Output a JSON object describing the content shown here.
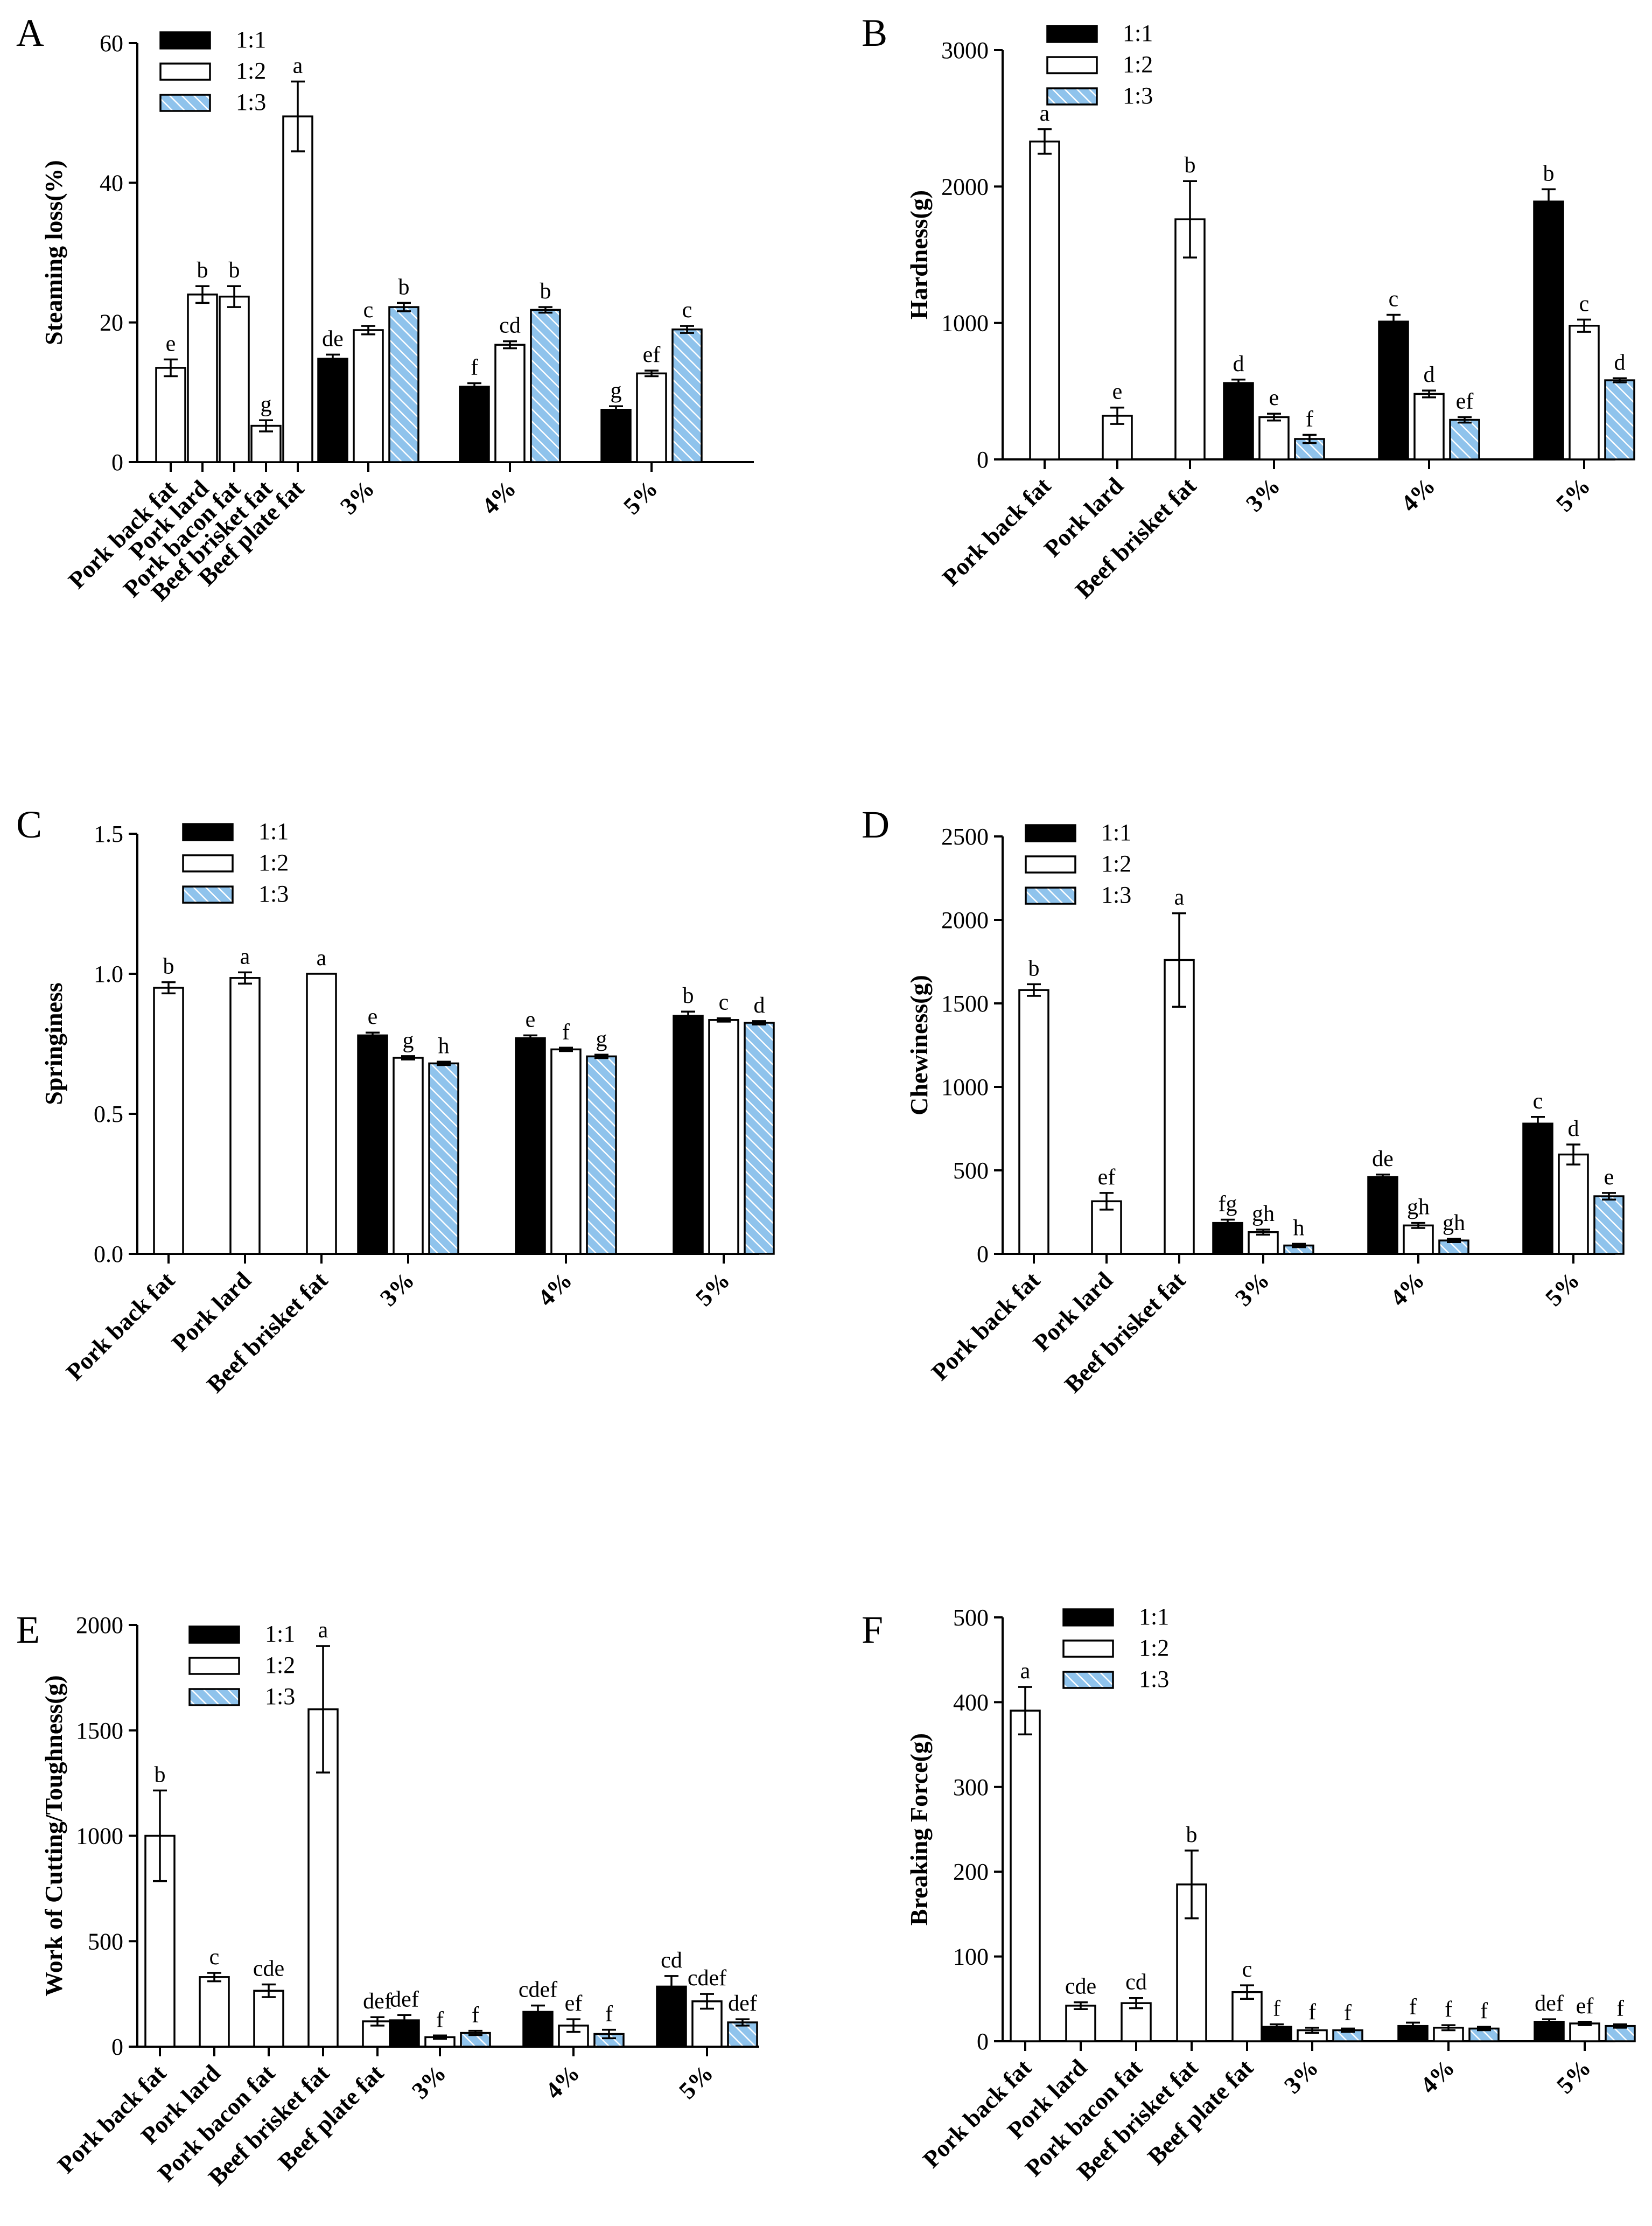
{
  "colors": {
    "ink": "#000000",
    "black_bar": "#000000",
    "white_bar": "#ffffff",
    "hatch_fill": "#8fc3ec",
    "hatch_line": "#ffffff"
  },
  "legend": [
    "1:1",
    "1:2",
    "1:3"
  ],
  "chart_data": [
    {
      "panel": "A",
      "type": "bar",
      "ylabel": "Steaming loss(%)",
      "ylim": [
        0,
        60
      ],
      "yticks": [
        0,
        20,
        40,
        60
      ],
      "singles": [
        {
          "label": "Pork back fat",
          "value": 13.5,
          "err": 1.2,
          "sig": "e"
        },
        {
          "label": "Pork lard",
          "value": 24,
          "err": 1.2,
          "sig": "b"
        },
        {
          "label": "Pork bacon fat",
          "value": 23.7,
          "err": 1.5,
          "sig": "b"
        },
        {
          "label": "Beef brisket fat",
          "value": 5.2,
          "err": 0.8,
          "sig": "g"
        },
        {
          "label": "Beef plate fat",
          "value": 49.5,
          "err": 5,
          "sig": "a"
        }
      ],
      "groups": [
        {
          "label": "3%",
          "bars": [
            {
              "value": 14.8,
              "err": 0.6,
              "sig": "de"
            },
            {
              "value": 18.9,
              "err": 0.6,
              "sig": "c"
            },
            {
              "value": 22.2,
              "err": 0.6,
              "sig": "b"
            }
          ]
        },
        {
          "label": "4%",
          "bars": [
            {
              "value": 10.8,
              "err": 0.5,
              "sig": "f"
            },
            {
              "value": 16.8,
              "err": 0.5,
              "sig": "cd"
            },
            {
              "value": 21.8,
              "err": 0.4,
              "sig": "b"
            }
          ]
        },
        {
          "label": "5%",
          "bars": [
            {
              "value": 7.5,
              "err": 0.5,
              "sig": "g"
            },
            {
              "value": 12.7,
              "err": 0.4,
              "sig": "ef"
            },
            {
              "value": 19,
              "err": 0.5,
              "sig": "c"
            }
          ]
        }
      ]
    },
    {
      "panel": "B",
      "type": "bar",
      "ylabel": "Hardness(g)",
      "ylim": [
        0,
        3000
      ],
      "yticks": [
        0,
        1000,
        2000,
        3000
      ],
      "singles": [
        {
          "label": "Pork back fat",
          "value": 2330,
          "err": 90,
          "sig": "a"
        },
        {
          "label": "Pork lard",
          "value": 320,
          "err": 60,
          "sig": "e"
        },
        {
          "label": "Beef brisket fat",
          "value": 1760,
          "err": 280,
          "sig": "b"
        }
      ],
      "groups": [
        {
          "label": "3%",
          "bars": [
            {
              "value": 560,
              "err": 25,
              "sig": "d"
            },
            {
              "value": 310,
              "err": 25,
              "sig": "e"
            },
            {
              "value": 150,
              "err": 30,
              "sig": "f"
            }
          ]
        },
        {
          "label": "4%",
          "bars": [
            {
              "value": 1010,
              "err": 50,
              "sig": "c"
            },
            {
              "value": 480,
              "err": 25,
              "sig": "d"
            },
            {
              "value": 290,
              "err": 20,
              "sig": "ef"
            }
          ]
        },
        {
          "label": "5%",
          "bars": [
            {
              "value": 1890,
              "err": 90,
              "sig": "b"
            },
            {
              "value": 980,
              "err": 45,
              "sig": "c"
            },
            {
              "value": 580,
              "err": 15,
              "sig": "d"
            }
          ]
        }
      ]
    },
    {
      "panel": "C",
      "type": "bar",
      "ylabel": "Springiness",
      "ylim": [
        0,
        1.5
      ],
      "yticks": [
        0.0,
        0.5,
        1.0,
        1.5
      ],
      "tick_decimals": 1,
      "singles": [
        {
          "label": "Pork back fat",
          "value": 0.95,
          "err": 0.02,
          "sig": "b"
        },
        {
          "label": "Pork lard",
          "value": 0.985,
          "err": 0.02,
          "sig": "a"
        },
        {
          "label": "Beef brisket fat",
          "value": 1.0,
          "err": 0,
          "sig": "a"
        }
      ],
      "groups": [
        {
          "label": "3%",
          "bars": [
            {
              "value": 0.78,
              "err": 0.01,
              "sig": "e"
            },
            {
              "value": 0.7,
              "err": 0.006,
              "sig": "g"
            },
            {
              "value": 0.68,
              "err": 0.006,
              "sig": "h"
            }
          ]
        },
        {
          "label": "4%",
          "bars": [
            {
              "value": 0.77,
              "err": 0.01,
              "sig": "e"
            },
            {
              "value": 0.73,
              "err": 0.006,
              "sig": "f"
            },
            {
              "value": 0.705,
              "err": 0.006,
              "sig": "g"
            }
          ]
        },
        {
          "label": "5%",
          "bars": [
            {
              "value": 0.85,
              "err": 0.015,
              "sig": "b"
            },
            {
              "value": 0.835,
              "err": 0.006,
              "sig": "c"
            },
            {
              "value": 0.825,
              "err": 0.006,
              "sig": "d"
            }
          ]
        }
      ]
    },
    {
      "panel": "D",
      "type": "bar",
      "ylabel": "Chewiness(g)",
      "ylim": [
        0,
        2500
      ],
      "yticks": [
        0,
        500,
        1000,
        1500,
        2000,
        2500
      ],
      "singles": [
        {
          "label": "Pork back fat",
          "value": 1580,
          "err": 35,
          "sig": "b"
        },
        {
          "label": "Pork lard",
          "value": 315,
          "err": 50,
          "sig": "ef"
        },
        {
          "label": "Beef brisket fat",
          "value": 1760,
          "err": 280,
          "sig": "a"
        }
      ],
      "groups": [
        {
          "label": "3%",
          "bars": [
            {
              "value": 185,
              "err": 20,
              "sig": "fg"
            },
            {
              "value": 130,
              "err": 15,
              "sig": "gh"
            },
            {
              "value": 50,
              "err": 10,
              "sig": "h"
            }
          ]
        },
        {
          "label": "4%",
          "bars": [
            {
              "value": 460,
              "err": 15,
              "sig": "de"
            },
            {
              "value": 170,
              "err": 15,
              "sig": "gh"
            },
            {
              "value": 80,
              "err": 10,
              "sig": "gh"
            }
          ]
        },
        {
          "label": "5%",
          "bars": [
            {
              "value": 780,
              "err": 40,
              "sig": "c"
            },
            {
              "value": 595,
              "err": 60,
              "sig": "d"
            },
            {
              "value": 345,
              "err": 20,
              "sig": "e"
            }
          ]
        }
      ]
    },
    {
      "panel": "E",
      "type": "bar",
      "ylabel": "Work of Cutting/Toughness(g)",
      "ylim": [
        0,
        2000
      ],
      "yticks": [
        0,
        500,
        1000,
        1500,
        2000
      ],
      "singles": [
        {
          "label": "Pork back fat",
          "value": 1000,
          "err": 215,
          "sig": "b"
        },
        {
          "label": "Pork lard",
          "value": 330,
          "err": 20,
          "sig": "c"
        },
        {
          "label": "Pork bacon fat",
          "value": 265,
          "err": 30,
          "sig": "cde"
        },
        {
          "label": "Beef brisket fat",
          "value": 1600,
          "err": 300,
          "sig": "a"
        },
        {
          "label": "Beef plate fat",
          "value": 120,
          "err": 20,
          "sig": "def"
        }
      ],
      "groups": [
        {
          "label": "3%",
          "bars": [
            {
              "value": 125,
              "err": 25,
              "sig": "def"
            },
            {
              "value": 45,
              "err": 8,
              "sig": "f"
            },
            {
              "value": 65,
              "err": 10,
              "sig": "f"
            }
          ]
        },
        {
          "label": "4%",
          "bars": [
            {
              "value": 165,
              "err": 30,
              "sig": "cdef"
            },
            {
              "value": 100,
              "err": 30,
              "sig": "ef"
            },
            {
              "value": 60,
              "err": 20,
              "sig": "f"
            }
          ]
        },
        {
          "label": "5%",
          "bars": [
            {
              "value": 285,
              "err": 50,
              "sig": "cd"
            },
            {
              "value": 215,
              "err": 35,
              "sig": "cdef"
            },
            {
              "value": 115,
              "err": 15,
              "sig": "def"
            }
          ]
        }
      ]
    },
    {
      "panel": "F",
      "type": "bar",
      "ylabel": "Breaking Force(g)",
      "ylim": [
        0,
        500
      ],
      "yticks": [
        0,
        100,
        200,
        300,
        400,
        500
      ],
      "singles": [
        {
          "label": "Pork back fat",
          "value": 390,
          "err": 28,
          "sig": "a"
        },
        {
          "label": "Pork lard",
          "value": 42,
          "err": 4,
          "sig": "cde"
        },
        {
          "label": "Pork bacon fat",
          "value": 45,
          "err": 6,
          "sig": "cd"
        },
        {
          "label": "Beef brisket fat",
          "value": 185,
          "err": 40,
          "sig": "b"
        },
        {
          "label": "Beef plate fat",
          "value": 58,
          "err": 8,
          "sig": "c"
        }
      ],
      "groups": [
        {
          "label": "3%",
          "bars": [
            {
              "value": 17,
              "err": 3,
              "sig": "f"
            },
            {
              "value": 13,
              "err": 3,
              "sig": "f"
            },
            {
              "value": 13,
              "err": 2,
              "sig": "f"
            }
          ]
        },
        {
          "label": "4%",
          "bars": [
            {
              "value": 18,
              "err": 4,
              "sig": "f"
            },
            {
              "value": 16,
              "err": 3,
              "sig": "f"
            },
            {
              "value": 15,
              "err": 2,
              "sig": "f"
            }
          ]
        },
        {
          "label": "5%",
          "bars": [
            {
              "value": 23,
              "err": 3,
              "sig": "def"
            },
            {
              "value": 21,
              "err": 2,
              "sig": "ef"
            },
            {
              "value": 18,
              "err": 2,
              "sig": "f"
            }
          ]
        }
      ]
    }
  ]
}
